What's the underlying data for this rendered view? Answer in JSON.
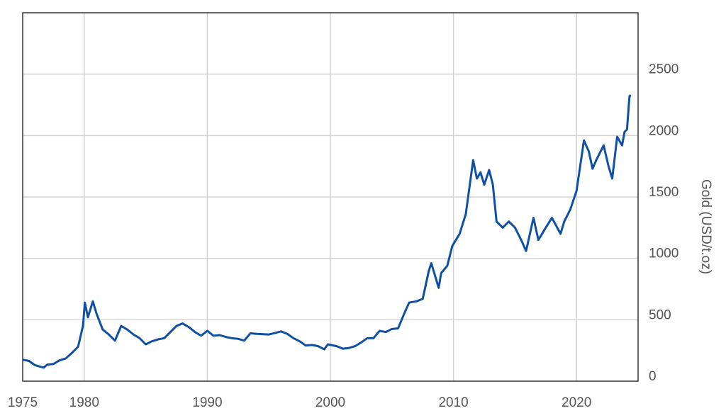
{
  "chart_data": {
    "type": "line",
    "y_label": "Gold (USD/t.oz)",
    "color": "#0f50a3",
    "grid": true,
    "xlim": [
      1975,
      2025
    ],
    "xticks": [
      1975,
      1980,
      1990,
      2000,
      2010,
      2020
    ],
    "ylim": [
      0,
      3000
    ],
    "yticks": [
      0,
      500,
      1000,
      1500,
      2000,
      2500
    ],
    "x": [
      1975.0,
      1975.5,
      1976.0,
      1976.7,
      1977.0,
      1977.5,
      1978.0,
      1978.5,
      1979.0,
      1979.5,
      1979.9,
      1980.05,
      1980.3,
      1980.7,
      1981.0,
      1981.5,
      1982.0,
      1982.5,
      1983.0,
      1983.5,
      1984.0,
      1984.5,
      1985.0,
      1985.5,
      1986.0,
      1986.5,
      1987.0,
      1987.5,
      1988.0,
      1988.5,
      1989.0,
      1989.5,
      1990.0,
      1990.5,
      1991.0,
      1991.5,
      1992.0,
      1992.5,
      1993.0,
      1993.5,
      1994.0,
      1995.0,
      1996.0,
      1996.5,
      1997.0,
      1997.5,
      1998.0,
      1998.5,
      1999.0,
      1999.5,
      1999.8,
      2000.5,
      2001.0,
      2001.5,
      2002.0,
      2002.5,
      2003.0,
      2003.5,
      2004.0,
      2004.5,
      2005.0,
      2005.5,
      2006.0,
      2006.4,
      2007.0,
      2007.5,
      2008.0,
      2008.2,
      2008.8,
      2009.0,
      2009.5,
      2009.9,
      2010.5,
      2011.0,
      2011.6,
      2011.9,
      2012.2,
      2012.5,
      2012.9,
      2013.2,
      2013.5,
      2014.0,
      2014.5,
      2015.0,
      2015.5,
      2015.9,
      2016.5,
      2016.9,
      2017.5,
      2018.0,
      2018.7,
      2019.0,
      2019.5,
      2020.0,
      2020.6,
      2021.0,
      2021.3,
      2021.6,
      2022.2,
      2022.6,
      2022.9,
      2023.3,
      2023.7,
      2023.9,
      2024.1,
      2024.3,
      2024.4
    ],
    "values": [
      175,
      165,
      130,
      110,
      135,
      140,
      170,
      185,
      230,
      280,
      450,
      640,
      520,
      650,
      550,
      420,
      380,
      330,
      450,
      420,
      380,
      350,
      300,
      325,
      340,
      350,
      400,
      450,
      470,
      440,
      400,
      370,
      410,
      370,
      375,
      360,
      350,
      345,
      330,
      390,
      385,
      380,
      405,
      385,
      350,
      325,
      290,
      295,
      285,
      260,
      300,
      285,
      265,
      270,
      285,
      315,
      350,
      350,
      410,
      400,
      425,
      430,
      550,
      640,
      650,
      670,
      900,
      960,
      760,
      880,
      940,
      1100,
      1200,
      1360,
      1800,
      1650,
      1700,
      1600,
      1720,
      1600,
      1300,
      1250,
      1300,
      1250,
      1150,
      1060,
      1330,
      1150,
      1250,
      1330,
      1200,
      1300,
      1400,
      1550,
      1960,
      1870,
      1730,
      1800,
      1920,
      1750,
      1650,
      1990,
      1920,
      2030,
      2050,
      2320,
      2330
    ]
  }
}
